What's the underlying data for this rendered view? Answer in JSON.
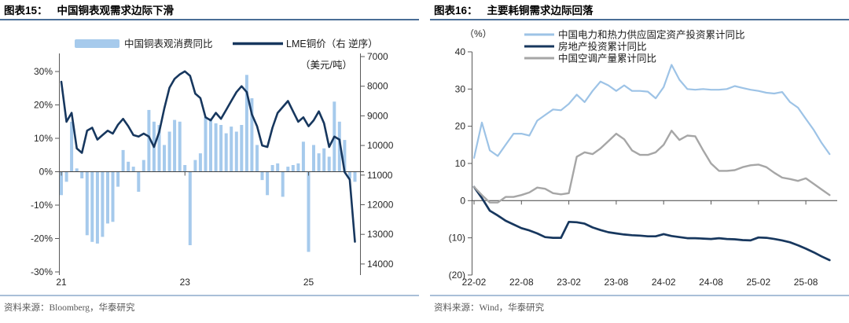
{
  "figures": [
    {
      "fig_label": "图表15：",
      "title": "中国铜表观需求边际下滑",
      "source": "资料来源：Bloomberg，华泰研究"
    },
    {
      "fig_label": "图表16：",
      "title": "主要耗铜需求边际回落",
      "source": "资料来源：Wind，华泰研究"
    }
  ],
  "chart_data": [
    {
      "type": "bar",
      "subtype": "bar+line combo, line on reversed right axis",
      "title": "中国铜表观需求边际下滑",
      "x_freq": "monthly",
      "x_start": "2021-01",
      "x_end": "2025-10",
      "x_ticks": [
        {
          "label": "21",
          "month_index": 0
        },
        {
          "label": "23",
          "month_index": 24
        },
        {
          "label": "25",
          "month_index": 48
        }
      ],
      "left_axis": {
        "tick_labels": [
          "30%",
          "20%",
          "10%",
          "0%",
          "-10%",
          "-20%",
          "-30%"
        ],
        "max": 30,
        "min": -30,
        "step": 10
      },
      "right_axis": {
        "tick_labels": [
          "7000",
          "8000",
          "9000",
          "10000",
          "11000",
          "12000",
          "13000",
          "14000"
        ],
        "min": 7000,
        "max": 14000,
        "step": 1000,
        "reversed": true,
        "unit": "（美元/吨）"
      },
      "series": [
        {
          "name": "中国铜表观消费同比",
          "type": "bar",
          "axis": "left",
          "color": "#A6CAEC",
          "values": [
            -7,
            -3,
            15,
            1,
            -2,
            -19,
            -21,
            -21.5,
            -19.5,
            -15.5,
            -15,
            -4.5,
            6.5,
            3,
            1.5,
            -6,
            3.5,
            18.5,
            15,
            14,
            8,
            12,
            15.5,
            15,
            2,
            -22,
            3.5,
            5.5,
            16.5,
            16,
            14.5,
            14,
            11.5,
            13.5,
            12,
            14,
            29,
            22,
            8,
            -2.5,
            -7,
            2,
            2.5,
            -7.5,
            1.5,
            2,
            2.5,
            9,
            -24,
            8,
            5.5,
            7,
            4.5,
            21,
            15,
            9.5,
            -2,
            -3
          ]
        },
        {
          "name": "LME铜价（右 逆序）",
          "type": "line",
          "axis": "right",
          "color": "#17375E",
          "values": [
            7850,
            9200,
            8900,
            10100,
            10250,
            9500,
            9400,
            9800,
            9650,
            9500,
            9600,
            9300,
            9100,
            9350,
            9650,
            9700,
            9600,
            9700,
            10050,
            9550,
            8750,
            8050,
            7750,
            7600,
            7500,
            7650,
            8250,
            8400,
            9050,
            9150,
            8900,
            9100,
            8800,
            8500,
            8200,
            8000,
            8200,
            8950,
            9350,
            10000,
            10050,
            9400,
            8900,
            8700,
            8500,
            8850,
            9200,
            9050,
            9350,
            9150,
            8850,
            9250,
            10050,
            9700,
            9800,
            10900,
            11150,
            13250
          ]
        }
      ]
    },
    {
      "type": "line",
      "title": "主要耗铜需求边际回落",
      "unit": "（%）",
      "x_freq": "monthly",
      "x_start": "2022-02",
      "x_end": "2025-11",
      "x_ticks": [
        {
          "label": "22-02",
          "month_index": 0
        },
        {
          "label": "22-08",
          "month_index": 6
        },
        {
          "label": "23-02",
          "month_index": 12
        },
        {
          "label": "23-08",
          "month_index": 18
        },
        {
          "label": "24-02",
          "month_index": 24
        },
        {
          "label": "24-08",
          "month_index": 30
        },
        {
          "label": "25-02",
          "month_index": 36
        },
        {
          "label": "25-08",
          "month_index": 42
        }
      ],
      "y_axis": {
        "tick_labels": [
          "40",
          "30",
          "20",
          "10",
          "0",
          "(10)",
          "(20)"
        ],
        "max": 40,
        "min": -20,
        "step": 10
      },
      "series": [
        {
          "name": "中国电力和热力供应固定资产投资累计同比",
          "color": "#9DC3E6",
          "values": [
            11.5,
            21,
            13.5,
            12,
            15,
            18,
            18,
            17.5,
            21.5,
            23,
            24.5,
            24.3,
            26,
            28.5,
            26.5,
            29.5,
            32,
            31,
            29.5,
            31,
            29.5,
            29.5,
            29.3,
            27.5,
            30.5,
            36.5,
            32.5,
            30,
            29.8,
            30,
            29.8,
            29.8,
            30,
            30.8,
            30.3,
            29.8,
            29.5,
            29,
            28.8,
            29.2,
            26.5,
            25,
            22,
            19,
            15.5,
            12.5
          ]
        },
        {
          "name": "房地产投资累计同比",
          "color": "#17375E",
          "values": [
            3.7,
            0.7,
            -2.7,
            -4,
            -5.4,
            -6.4,
            -7.4,
            -8,
            -8.8,
            -9.8,
            -10,
            -10,
            -5.7,
            -5.8,
            -6.2,
            -7.2,
            -7.9,
            -8.5,
            -8.8,
            -9.1,
            -9.3,
            -9.4,
            -9.6,
            -9.6,
            -9,
            -9.5,
            -9.8,
            -10.1,
            -10.1,
            -10.2,
            -10.3,
            -10.1,
            -10.3,
            -10.4,
            -10.6,
            -10.7,
            -9.9,
            -10,
            -10.3,
            -10.7,
            -11.2,
            -12,
            -12.9,
            -13.9,
            -15,
            -16
          ]
        },
        {
          "name": "中国空调产量累计同比",
          "color": "#A6A6A6",
          "values": [
            3.7,
            1.5,
            -0.5,
            -0.5,
            1,
            1,
            1.5,
            2.2,
            3.5,
            3.2,
            2,
            1.7,
            2,
            11.8,
            13,
            12.5,
            14,
            16,
            18,
            16.5,
            13.5,
            12.3,
            12.3,
            13,
            15,
            18.8,
            16.3,
            17.5,
            17.3,
            13.5,
            10,
            8,
            8,
            8.2,
            9,
            9.5,
            9.7,
            9,
            7.5,
            6.2,
            5.8,
            5.3,
            6,
            4.5,
            3,
            1.5
          ]
        }
      ]
    }
  ],
  "colors": {
    "header_rule": "#4A6E96",
    "footer_rule": "#A9BFD8",
    "axis_line": "#595959",
    "zero_line": "#404040",
    "tick_text": "#262626",
    "legend_text": "#1a1a1a"
  }
}
